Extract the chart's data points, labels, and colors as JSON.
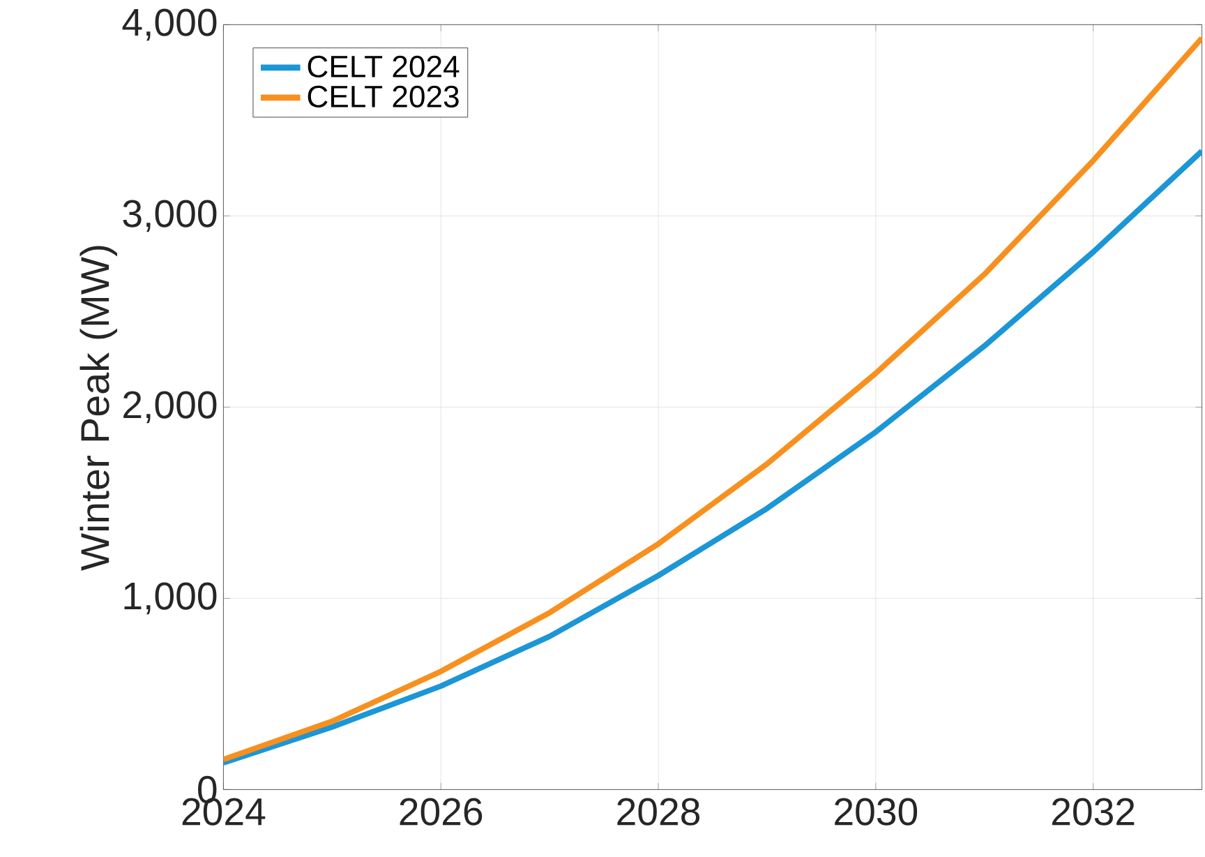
{
  "chart_data": {
    "type": "line",
    "ylabel": "Winter Peak (MW)",
    "x": [
      2024,
      2025,
      2026,
      2027,
      2028,
      2029,
      2030,
      2031,
      2032,
      2033
    ],
    "series": [
      {
        "name": "CELT 2024",
        "color": "#1b96d6",
        "values": [
          140,
          327,
          541,
          801,
          1119,
          1470,
          1870,
          2320,
          2811,
          3339
        ]
      },
      {
        "name": "CELT 2023",
        "color": "#f7901e",
        "values": [
          157,
          357,
          618,
          925,
          1285,
          1703,
          2177,
          2695,
          3289,
          3930
        ]
      }
    ],
    "xlim": [
      2024,
      2033
    ],
    "ylim": [
      0,
      4000
    ],
    "xticks": [
      2024,
      2026,
      2028,
      2030,
      2032
    ],
    "yticks": [
      0,
      {
        "value": 1000,
        "label": "1,000"
      },
      {
        "value": 2000,
        "label": "2,000"
      },
      {
        "value": 3000,
        "label": "3,000"
      },
      {
        "value": 4000,
        "label": "4,000"
      }
    ],
    "grid": true,
    "legend": "top left"
  }
}
